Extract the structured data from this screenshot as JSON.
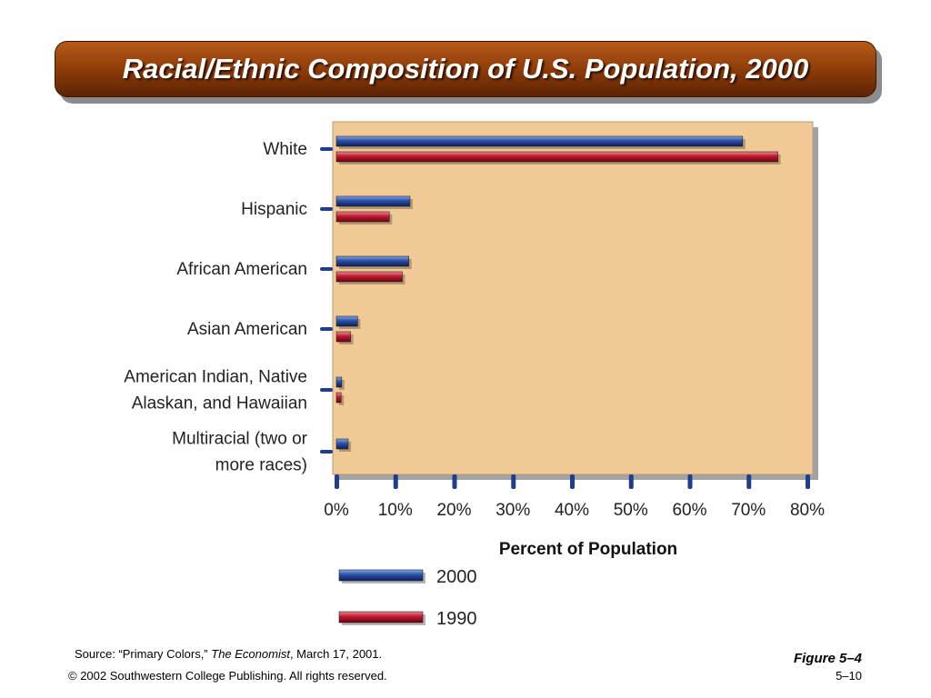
{
  "title": "Racial/Ethnic Composition of U.S. Population, 2000",
  "footer": {
    "source_prefix": "Source: “Primary Colors,” ",
    "source_publication": "The Economist",
    "source_suffix": ", March 17, 2001.",
    "copyright": "© 2002 Southwestern College Publishing. All rights reserved.",
    "figure": "Figure 5–4",
    "page": "5–10"
  },
  "chart_data": {
    "type": "bar",
    "orientation": "horizontal",
    "categories": [
      [
        "White"
      ],
      [
        "Hispanic"
      ],
      [
        "African American"
      ],
      [
        "Asian American"
      ],
      [
        "American Indian, Native",
        "Alaskan, and Hawaiian"
      ],
      [
        "Multiracial (two or",
        "more races)"
      ]
    ],
    "series": [
      {
        "name": "2000",
        "values": [
          69,
          12.5,
          12.3,
          3.6,
          0.9,
          2.0
        ],
        "color": "#1e3d8f"
      },
      {
        "name": "1990",
        "values": [
          75,
          9.0,
          11.2,
          2.4,
          0.8,
          null
        ],
        "color": "#b01228"
      }
    ],
    "xlabel": "Percent of Population",
    "xlim": [
      0,
      80
    ],
    "xticks": [
      "0%",
      "10%",
      "20%",
      "30%",
      "40%",
      "50%",
      "60%",
      "70%",
      "80%"
    ],
    "legend_position": "bottom",
    "plot_background": "#f0c994"
  }
}
